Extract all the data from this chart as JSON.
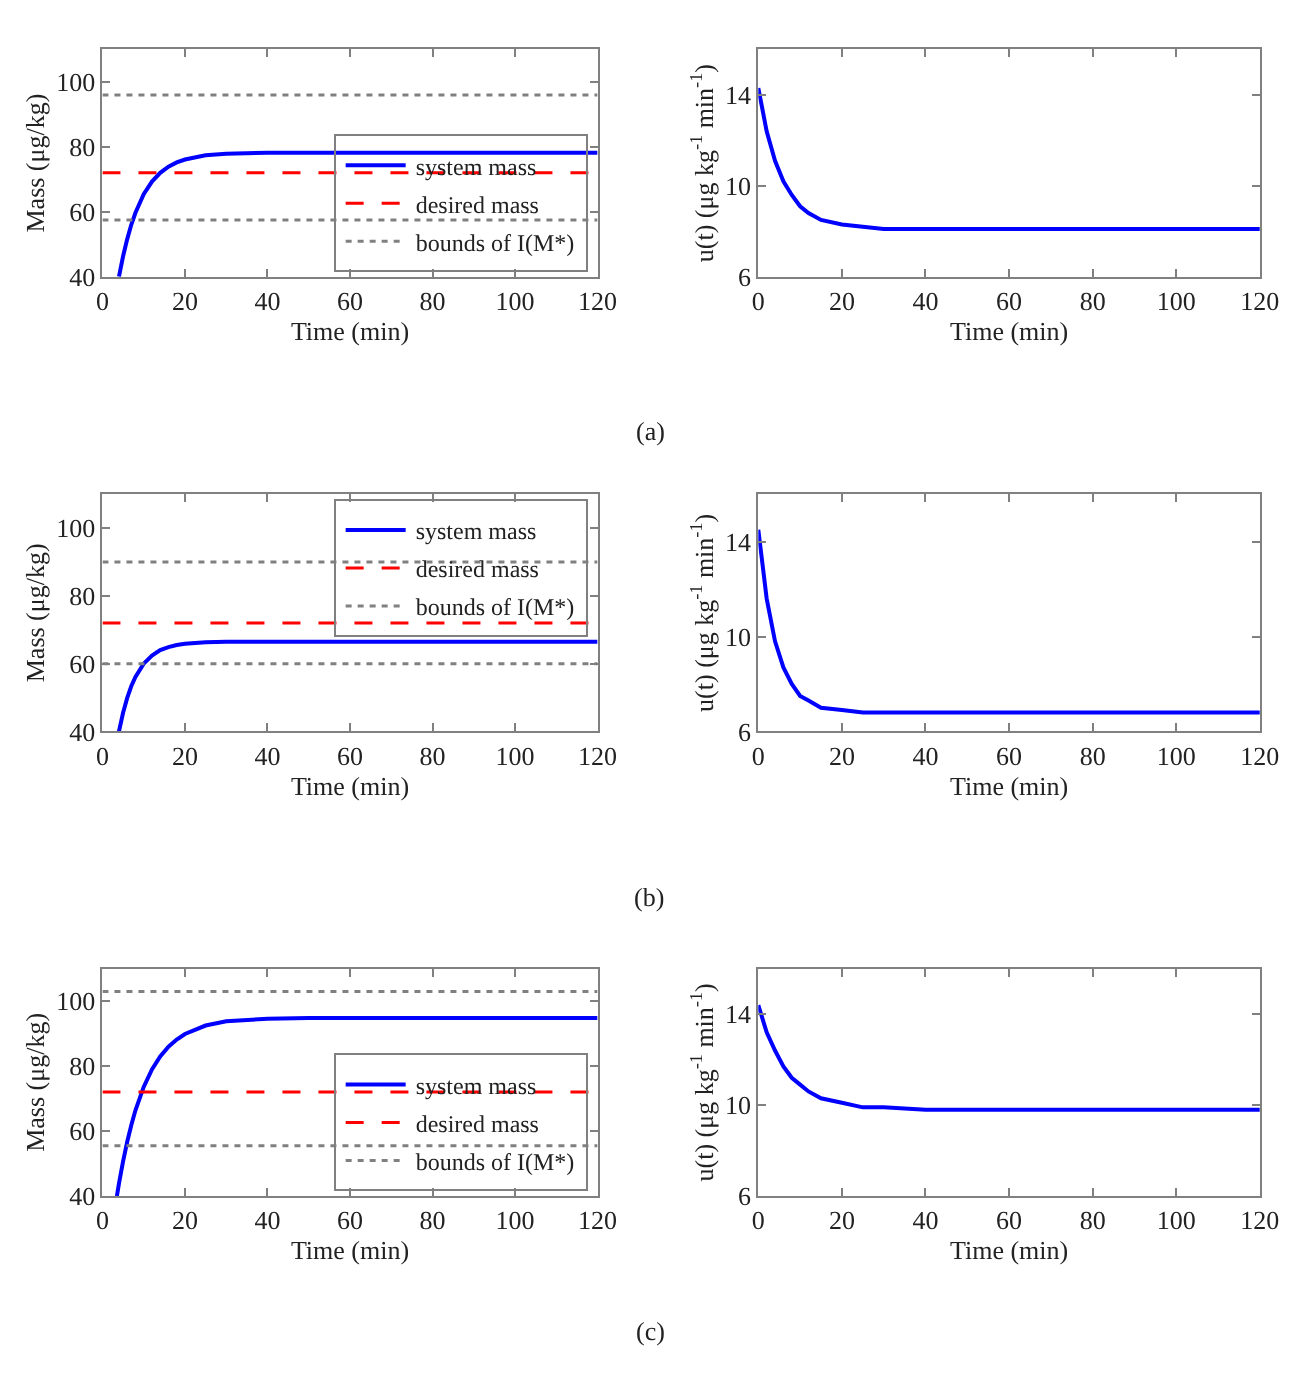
{
  "chart_data": [
    {
      "type": "line",
      "xlabel": "Time (min)",
      "ylabel": "Mass (μg/kg)",
      "xlim": [
        0,
        120
      ],
      "ylim": [
        40,
        110
      ],
      "xticks": [
        0,
        20,
        40,
        60,
        80,
        100,
        120
      ],
      "yticks": [
        40,
        60,
        80,
        100
      ],
      "legend": "bottom right",
      "annotations": [
        "(a)"
      ],
      "series": [
        {
          "name": "system mass",
          "color": "#0000ff",
          "line_style": "solid",
          "x": [
            4,
            5,
            6,
            7,
            8,
            10,
            12,
            14,
            16,
            18,
            20,
            25,
            30,
            40,
            120
          ],
          "values": [
            40,
            46.3,
            51.6,
            56.1,
            59.7,
            65.4,
            69.3,
            72.0,
            73.9,
            75.2,
            76.1,
            77.4,
            77.9,
            78.2,
            78.2
          ]
        },
        {
          "name": "desired mass",
          "color": "#ff0000",
          "line_style": "dashed",
          "x": [
            0,
            120
          ],
          "values": [
            72,
            72
          ]
        },
        {
          "name": "bounds of I(M*)",
          "color": "#808080",
          "line_style": "dotted",
          "x": [
            0,
            120
          ],
          "values": [
            57.5,
            57.5
          ]
        },
        {
          "color": "#808080",
          "line_style": "dotted",
          "x": [
            0,
            120
          ],
          "values": [
            96,
            96
          ]
        }
      ]
    },
    {
      "type": "line",
      "xlabel": "Time (min)",
      "ylabel": "u(t) (μg kg$^{-1}$ min$^{-1}$)",
      "xlim": [
        0,
        120
      ],
      "ylim": [
        6,
        16
      ],
      "xticks": [
        0,
        20,
        40,
        60,
        80,
        100,
        120
      ],
      "yticks": [
        6,
        10,
        14
      ],
      "series": [
        {
          "color": "#0000ff",
          "x": [
            0,
            2,
            4,
            6,
            8,
            10,
            12,
            15,
            20,
            25,
            30,
            40,
            120
          ],
          "values": [
            14.3,
            12.4,
            11.1,
            10.2,
            9.6,
            9.1,
            8.8,
            8.5,
            8.3,
            8.2,
            8.1,
            8.1,
            8.1
          ]
        }
      ]
    },
    {
      "type": "line",
      "xlabel": "Time (min)",
      "ylabel": "Mass (μg/kg)",
      "xlim": [
        0,
        120
      ],
      "ylim": [
        40,
        110
      ],
      "xticks": [
        0,
        20,
        40,
        60,
        80,
        100,
        120
      ],
      "yticks": [
        40,
        60,
        80,
        100
      ],
      "legend": "top right",
      "annotations": [
        "(b)"
      ],
      "series": [
        {
          "name": "system mass",
          "color": "#0000ff",
          "line_style": "solid",
          "x": [
            4,
            5,
            6,
            7,
            8,
            10,
            12,
            14,
            16,
            18,
            20,
            25,
            30,
            120
          ],
          "values": [
            40,
            45.5,
            49.9,
            53.4,
            56.1,
            60.0,
            62.4,
            64.0,
            64.9,
            65.5,
            65.9,
            66.3,
            66.5,
            66.5
          ]
        },
        {
          "name": "desired mass",
          "color": "#ff0000",
          "line_style": "dashed",
          "x": [
            0,
            120
          ],
          "values": [
            72,
            72
          ]
        },
        {
          "name": "bounds of I(M*)",
          "color": "#808080",
          "line_style": "dotted",
          "x": [
            0,
            120
          ],
          "values": [
            60,
            60
          ]
        },
        {
          "color": "#808080",
          "line_style": "dotted",
          "x": [
            0,
            120
          ],
          "values": [
            90,
            90
          ]
        }
      ]
    },
    {
      "type": "line",
      "xlabel": "Time (min)",
      "ylabel": "u(t) (μg kg$^{-1}$ min$^{-1}$)",
      "xlim": [
        0,
        120
      ],
      "ylim": [
        6,
        16
      ],
      "xticks": [
        0,
        20,
        40,
        60,
        80,
        100,
        120
      ],
      "yticks": [
        6,
        10,
        14
      ],
      "series": [
        {
          "color": "#0000ff",
          "x": [
            0,
            2,
            4,
            6,
            8,
            10,
            12,
            15,
            20,
            25,
            30,
            120
          ],
          "values": [
            14.5,
            11.6,
            9.8,
            8.7,
            8.0,
            7.5,
            7.3,
            7.0,
            6.9,
            6.8,
            6.8,
            6.8
          ]
        }
      ]
    },
    {
      "type": "line",
      "xlabel": "Time (min)",
      "ylabel": "Mass (μg/kg)",
      "xlim": [
        0,
        120
      ],
      "ylim": [
        40,
        110
      ],
      "xticks": [
        0,
        20,
        40,
        60,
        80,
        100,
        120
      ],
      "yticks": [
        40,
        60,
        80,
        100
      ],
      "legend": "bottom right",
      "annotations": [
        "(c)"
      ],
      "series": [
        {
          "name": "system mass",
          "color": "#0000ff",
          "line_style": "solid",
          "x": [
            3.5,
            4,
            5,
            6,
            7,
            8,
            10,
            12,
            14,
            16,
            18,
            20,
            25,
            30,
            40,
            50,
            120
          ],
          "values": [
            40,
            43.8,
            50.7,
            56.7,
            61.9,
            66.4,
            73.6,
            79.0,
            83.0,
            86.0,
            88.2,
            89.9,
            92.5,
            93.8,
            94.6,
            94.8,
            94.8
          ]
        },
        {
          "name": "desired mass",
          "color": "#ff0000",
          "line_style": "dashed",
          "x": [
            0,
            120
          ],
          "values": [
            72,
            72
          ]
        },
        {
          "name": "bounds of I(M*)",
          "color": "#808080",
          "line_style": "dotted",
          "x": [
            0,
            120
          ],
          "values": [
            55.5,
            55.5
          ]
        },
        {
          "color": "#808080",
          "line_style": "dotted",
          "x": [
            0,
            120
          ],
          "values": [
            103,
            103
          ]
        }
      ]
    },
    {
      "type": "line",
      "xlabel": "Time (min)",
      "ylabel": "u(t) (μg kg$^{-1}$ min$^{-1}$)",
      "xlim": [
        0,
        120
      ],
      "ylim": [
        6,
        16
      ],
      "xticks": [
        0,
        20,
        40,
        60,
        80,
        100,
        120
      ],
      "yticks": [
        6,
        10,
        14
      ],
      "series": [
        {
          "color": "#0000ff",
          "x": [
            0,
            2,
            4,
            6,
            8,
            10,
            12,
            15,
            20,
            25,
            30,
            40,
            120
          ],
          "values": [
            14.4,
            13.2,
            12.4,
            11.7,
            11.2,
            10.9,
            10.6,
            10.3,
            10.1,
            9.9,
            9.9,
            9.8,
            9.8
          ]
        }
      ]
    }
  ]
}
